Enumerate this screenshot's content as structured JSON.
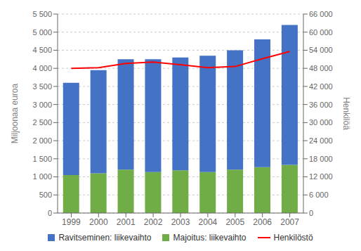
{
  "chart_data": {
    "type": "bar",
    "stacked": true,
    "grid": true,
    "ylabel": "Miljoonaa euroa",
    "y2label": "Henkilöä",
    "categories": [
      "1999",
      "2000",
      "2001",
      "2002",
      "2003",
      "2004",
      "2005",
      "2006",
      "2007"
    ],
    "series": [
      {
        "name": "Ravitseminen: liikevaihto",
        "type": "bar",
        "color": "#4472C4",
        "values": [
          2550,
          2850,
          3050,
          3120,
          3120,
          3220,
          3300,
          3530,
          3870
        ]
      },
      {
        "name": "Majoitus: liikevaihto",
        "type": "bar",
        "color": "#70AD47",
        "values": [
          1050,
          1100,
          1200,
          1130,
          1180,
          1130,
          1200,
          1270,
          1330
        ]
      },
      {
        "name": "Henkilöstö",
        "type": "line",
        "axis": "y2",
        "color": "#FF0000",
        "values": [
          48000,
          48200,
          49600,
          50100,
          49200,
          48200,
          48600,
          51200,
          53600
        ]
      }
    ],
    "ylim": [
      0,
      5500
    ],
    "yticks": [
      0,
      500,
      {
        "value": 1000,
        "label": "1 000"
      },
      {
        "value": 1500,
        "label": "1 500"
      },
      {
        "value": 2000,
        "label": "2 000"
      },
      {
        "value": 2500,
        "label": "2 500"
      },
      {
        "value": 3000,
        "label": "3 000"
      },
      {
        "value": 3500,
        "label": "3 500"
      },
      {
        "value": 4000,
        "label": "4 000"
      },
      {
        "value": 4500,
        "label": "4 500"
      },
      {
        "value": 5000,
        "label": "5 000"
      },
      {
        "value": 5500,
        "label": "5 500"
      }
    ],
    "y2lim": [
      0,
      66000
    ],
    "y2ticks": [
      0,
      {
        "value": 6000,
        "label": "6 000"
      },
      {
        "value": 12000,
        "label": "12 000"
      },
      {
        "value": 18000,
        "label": "18 000"
      },
      {
        "value": 24000,
        "label": "24 000"
      },
      {
        "value": 30000,
        "label": "30 000"
      },
      {
        "value": 36000,
        "label": "36 000"
      },
      {
        "value": 42000,
        "label": "42 000"
      },
      {
        "value": 48000,
        "label": "48 000"
      },
      {
        "value": 54000,
        "label": "54 000"
      },
      {
        "value": 60000,
        "label": "60 000"
      },
      {
        "value": 66000,
        "label": "66 000"
      }
    ]
  }
}
